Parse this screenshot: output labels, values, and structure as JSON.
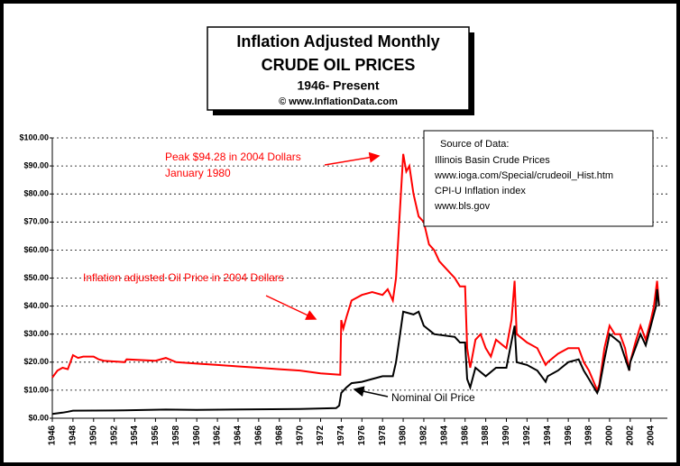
{
  "chart_data": {
    "type": "line",
    "title_lines": [
      "Inflation Adjusted Monthly",
      "CRUDE OIL PRICES",
      "1946- Present",
      "© www.InflationData.com"
    ],
    "source_lines": [
      "Source of Data:",
      "Illinois Basin Crude Prices",
      "www.ioga.com/Special/crudeoil_Hist.htm",
      "CPI-U Inflation index",
      "www.bls.gov"
    ],
    "annotations": [
      "Peak $94.28 in 2004 Dollars",
      "January 1980"
    ],
    "xlim": [
      1946,
      2005.6
    ],
    "xticks": [
      1946,
      1948,
      1950,
      1952,
      1954,
      1956,
      1958,
      1960,
      1962,
      1964,
      1966,
      1968,
      1970,
      1972,
      1974,
      1976,
      1978,
      1980,
      1982,
      1984,
      1986,
      1988,
      1990,
      1992,
      1994,
      1996,
      1998,
      2000,
      2002,
      2004
    ],
    "ylim": [
      0,
      100
    ],
    "yticks": [
      {
        "value": 0,
        "label": "$0.00"
      },
      {
        "value": 10,
        "label": "$10.00"
      },
      {
        "value": 20,
        "label": "$20.00"
      },
      {
        "value": 30,
        "label": "$30.00"
      },
      {
        "value": 40,
        "label": "$40.00"
      },
      {
        "value": 50,
        "label": "$50.00"
      },
      {
        "value": 60,
        "label": "$60.00"
      },
      {
        "value": 70,
        "label": "$70.00"
      },
      {
        "value": 80,
        "label": "$80.00"
      },
      {
        "value": 90,
        "label": "$90.00"
      },
      {
        "value": 100,
        "label": "$100.00"
      }
    ],
    "grid": true,
    "series": [
      {
        "name": "Inflation adjusted Oil Price in 2004 Dollars",
        "color": "#ff0000",
        "x": [
          1946,
          1946.5,
          1947,
          1947.5,
          1948,
          1948.5,
          1949,
          1950,
          1950.5,
          1951,
          1953,
          1953.2,
          1956,
          1957,
          1958,
          1960,
          1962,
          1964,
          1966,
          1968,
          1970,
          1972,
          1973.9,
          1974,
          1974.2,
          1974.5,
          1975,
          1976,
          1977,
          1978,
          1978.5,
          1979,
          1979.3,
          1979.7,
          1980,
          1980.3,
          1980.6,
          1981,
          1981.5,
          1982,
          1982.5,
          1983,
          1983.5,
          1984,
          1985,
          1985.5,
          1986,
          1986.2,
          1986.5,
          1987,
          1987.5,
          1988,
          1988.5,
          1989,
          1990,
          1990.5,
          1990.8,
          1991,
          1992,
          1993,
          1993.8,
          1994,
          1995,
          1996,
          1997,
          1997.5,
          1998,
          1998.8,
          1999,
          1999.5,
          2000,
          2000.5,
          2001,
          2001.5,
          2001.9,
          2002,
          2002.5,
          2003,
          2003.5,
          2004,
          2004.3,
          2004.6,
          2004.8
        ],
        "values": [
          14.5,
          17,
          18,
          17.5,
          22.5,
          21.5,
          22,
          22,
          21,
          20.5,
          20,
          21,
          20.5,
          21.5,
          20,
          19.5,
          19,
          18.5,
          18,
          17.5,
          17,
          16,
          15.5,
          35,
          32,
          36,
          42,
          44,
          45,
          44,
          46,
          42,
          50,
          75,
          94.28,
          88,
          90,
          80,
          72,
          70,
          62,
          60,
          56,
          54,
          50,
          47,
          47,
          25,
          18,
          28,
          30,
          25,
          22,
          28,
          25,
          35,
          49,
          30,
          27,
          25,
          19,
          20,
          23,
          25,
          25,
          20,
          17,
          10,
          12,
          25,
          33,
          30,
          30,
          25,
          17,
          20,
          27,
          33,
          28,
          35,
          40,
          49,
          40
        ]
      },
      {
        "name": "Nominal Oil Price",
        "color": "#000000",
        "x": [
          1946,
          1947,
          1947.5,
          1948,
          1953,
          1957,
          1960,
          1970,
          1973.5,
          1973.8,
          1974,
          1974.5,
          1975,
          1976,
          1977,
          1978,
          1979,
          1979.3,
          1979.7,
          1980,
          1981,
          1981.5,
          1982,
          1983,
          1985,
          1985.5,
          1986,
          1986.2,
          1986.5,
          1987,
          1988,
          1989,
          1990,
          1990.8,
          1991,
          1992,
          1993,
          1993.8,
          1994,
          1995,
          1996,
          1997,
          1997.5,
          1998,
          1998.8,
          1999,
          1999.5,
          2000,
          2001,
          2001.9,
          2002,
          2002.5,
          2003,
          2003.5,
          2004,
          2004.5,
          2004.6,
          2004.8
        ],
        "values": [
          1.5,
          2,
          2.3,
          2.7,
          2.8,
          3.1,
          3,
          3.3,
          3.6,
          4.5,
          9,
          11,
          12.5,
          13,
          14,
          15,
          15,
          20,
          30,
          38,
          37,
          38,
          33,
          30,
          29,
          27,
          27,
          14,
          11,
          18,
          15,
          18,
          18,
          33,
          20,
          19,
          17,
          13,
          15,
          17,
          20,
          21,
          17,
          14,
          9,
          11,
          21,
          30,
          27,
          17,
          20,
          25,
          30,
          26,
          33,
          40,
          46,
          40
        ]
      }
    ]
  }
}
